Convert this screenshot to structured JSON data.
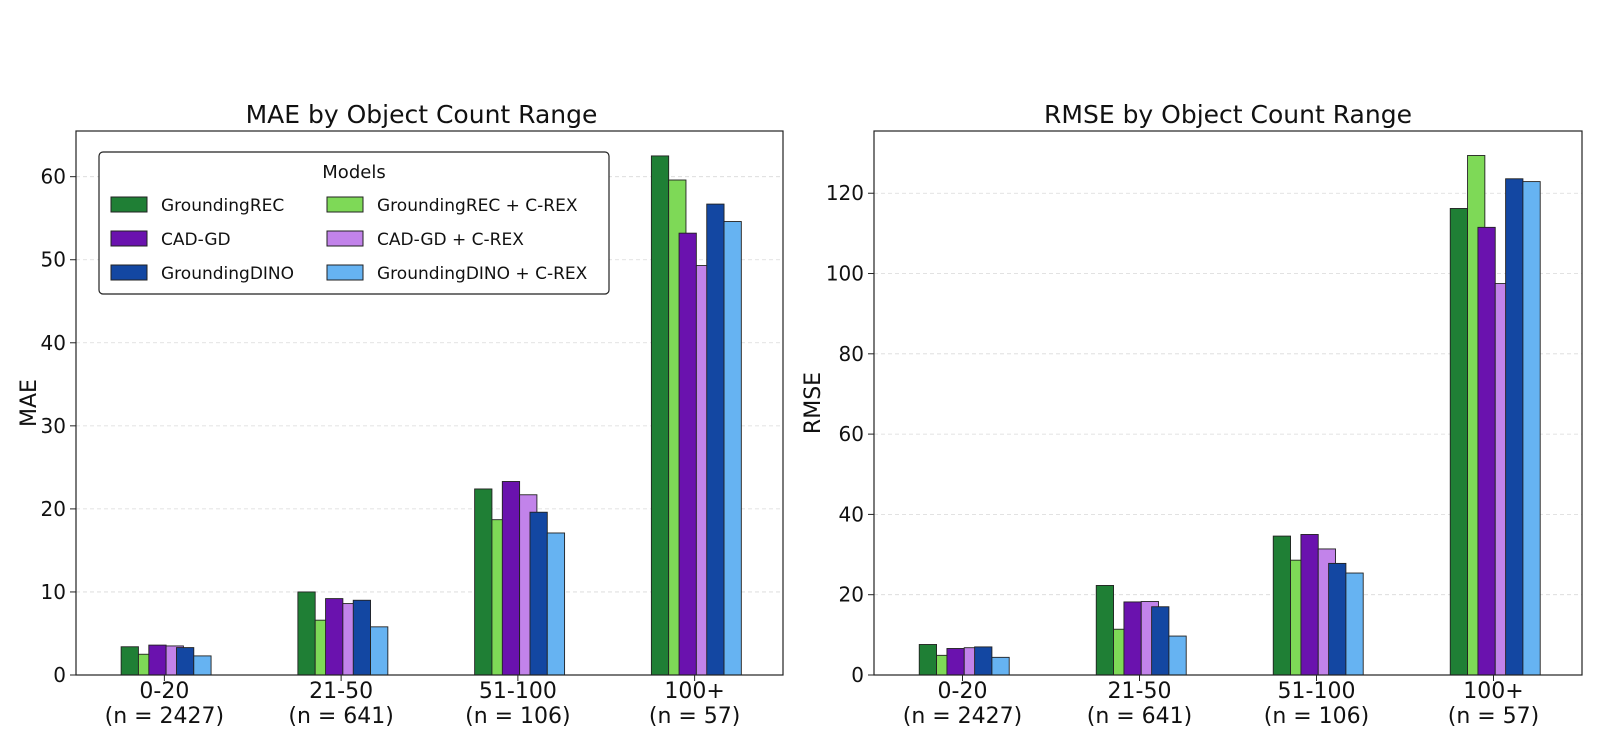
{
  "legend": {
    "title": "Models",
    "entries": [
      {
        "name": "GroundingREC",
        "color": "#1f7f35"
      },
      {
        "name": "CAD-GD",
        "color": "#6a12ae"
      },
      {
        "name": "GroundingDINO",
        "color": "#1347a2"
      },
      {
        "name": "GroundingREC + C-REX",
        "color": "#7ed957"
      },
      {
        "name": "CAD-GD + C-REX",
        "color": "#c283ea"
      },
      {
        "name": "GroundingDINO + C-REX",
        "color": "#66b3f2"
      }
    ]
  },
  "chart_data": [
    {
      "type": "bar",
      "title": "MAE by Object Count Range",
      "xlabel": "",
      "ylabel": "MAE",
      "categories": [
        "0-20",
        "21-50",
        "51-100",
        "100+"
      ],
      "category_counts": [
        "(n = 2427)",
        "(n = 641)",
        "(n = 106)",
        "(n = 57)"
      ],
      "ylim": [
        0,
        65.5
      ],
      "yticks": [
        0,
        10,
        20,
        30,
        40,
        50,
        60
      ],
      "grid": "horizontal dashed",
      "legend_position": "top-left",
      "series": [
        {
          "name": "GroundingREC",
          "color": "#1f7f35",
          "values": [
            3.4,
            10.0,
            22.4,
            62.5
          ]
        },
        {
          "name": "GroundingREC + C-REX",
          "color": "#7ed957",
          "values": [
            2.5,
            6.6,
            18.7,
            59.6
          ]
        },
        {
          "name": "CAD-GD",
          "color": "#6a12ae",
          "values": [
            3.6,
            9.2,
            23.3,
            53.2
          ]
        },
        {
          "name": "CAD-GD + C-REX",
          "color": "#c283ea",
          "values": [
            3.5,
            8.6,
            21.7,
            49.3
          ]
        },
        {
          "name": "GroundingDINO",
          "color": "#1347a2",
          "values": [
            3.3,
            9.0,
            19.6,
            56.7
          ]
        },
        {
          "name": "GroundingDINO + C-REX",
          "color": "#66b3f2",
          "values": [
            2.3,
            5.8,
            17.1,
            54.6
          ]
        }
      ]
    },
    {
      "type": "bar",
      "title": "RMSE by Object Count Range",
      "xlabel": "",
      "ylabel": "RMSE",
      "categories": [
        "0-20",
        "21-50",
        "51-100",
        "100+"
      ],
      "category_counts": [
        "(n = 2427)",
        "(n = 641)",
        "(n = 106)",
        "(n = 57)"
      ],
      "ylim": [
        0,
        135.5
      ],
      "yticks": [
        0,
        20,
        40,
        60,
        80,
        100,
        120
      ],
      "grid": "horizontal dashed",
      "series": [
        {
          "name": "GroundingREC",
          "color": "#1f7f35",
          "values": [
            7.6,
            22.3,
            34.6,
            116.2
          ]
        },
        {
          "name": "GroundingREC + C-REX",
          "color": "#7ed957",
          "values": [
            4.9,
            11.4,
            28.6,
            129.4
          ]
        },
        {
          "name": "CAD-GD",
          "color": "#6a12ae",
          "values": [
            6.6,
            18.2,
            35.0,
            111.5
          ]
        },
        {
          "name": "CAD-GD + C-REX",
          "color": "#c283ea",
          "values": [
            6.8,
            18.3,
            31.4,
            97.5
          ]
        },
        {
          "name": "GroundingDINO",
          "color": "#1347a2",
          "values": [
            7.0,
            17.0,
            27.8,
            123.6
          ]
        },
        {
          "name": "GroundingDINO + C-REX",
          "color": "#66b3f2",
          "values": [
            4.4,
            9.7,
            25.4,
            122.9
          ]
        }
      ]
    }
  ]
}
